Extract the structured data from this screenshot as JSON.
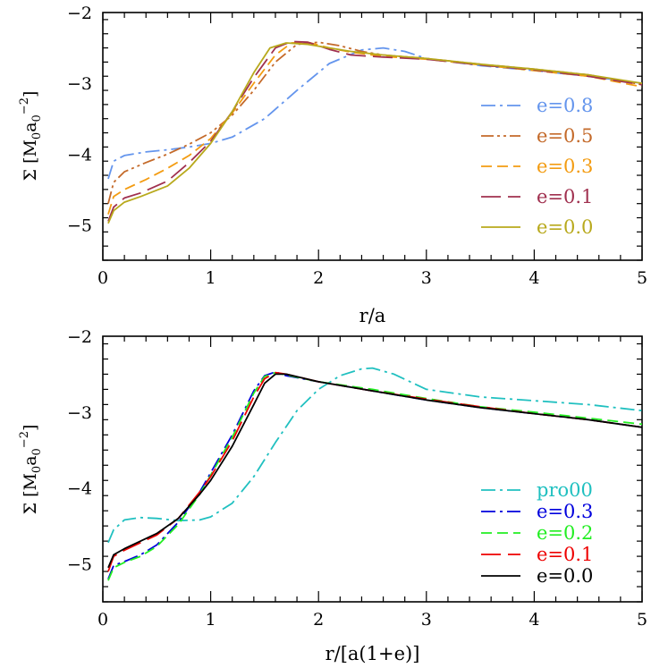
{
  "chart_data": [
    {
      "type": "line",
      "xlabel": "r/a",
      "ylabel_main": "Σ [M",
      "ylabel_sub1": "0",
      "ylabel_mid": "a",
      "ylabel_sub2": "0",
      "ylabel_sup": "−2",
      "ylabel_end": "]",
      "xlim": [
        0,
        5
      ],
      "ylim": [
        -5.5,
        -2
      ],
      "xticks": [
        "0",
        "1",
        "2",
        "3",
        "4",
        "5"
      ],
      "yticks": [
        "−5",
        "−4",
        "−3",
        "−2"
      ],
      "legend_position": "right",
      "series": [
        {
          "name": "e=0.8",
          "color": "#6495ed",
          "dash": "dashdot",
          "x": [
            0.05,
            0.1,
            0.2,
            0.4,
            0.6,
            0.8,
            1.0,
            1.2,
            1.5,
            1.8,
            2.1,
            2.4,
            2.6,
            2.8,
            3.0,
            3.5,
            4.0,
            4.5,
            5.0
          ],
          "y": [
            -4.35,
            -4.1,
            -4.02,
            -3.97,
            -3.94,
            -3.9,
            -3.85,
            -3.76,
            -3.5,
            -3.1,
            -2.72,
            -2.53,
            -2.5,
            -2.55,
            -2.65,
            -2.75,
            -2.82,
            -2.9,
            -3.0
          ]
        },
        {
          "name": "e=0.5",
          "color": "#c46a2a",
          "dash": "dashdotdot",
          "x": [
            0.05,
            0.1,
            0.2,
            0.4,
            0.6,
            0.8,
            1.0,
            1.2,
            1.4,
            1.6,
            1.8,
            2.0,
            2.2,
            2.4,
            2.6,
            3.0,
            3.5,
            4.0,
            4.5,
            5.0
          ],
          "y": [
            -4.7,
            -4.4,
            -4.25,
            -4.12,
            -4.0,
            -3.86,
            -3.7,
            -3.45,
            -3.1,
            -2.7,
            -2.45,
            -2.42,
            -2.47,
            -2.55,
            -2.6,
            -2.65,
            -2.73,
            -2.8,
            -2.88,
            -3.02
          ]
        },
        {
          "name": "e=0.3",
          "color": "#f39c12",
          "dash": "dashed",
          "x": [
            0.05,
            0.1,
            0.2,
            0.4,
            0.6,
            0.8,
            1.0,
            1.2,
            1.4,
            1.6,
            1.75,
            1.9,
            2.1,
            2.3,
            2.6,
            3.0,
            3.5,
            4.0,
            4.5,
            5.0
          ],
          "y": [
            -4.85,
            -4.6,
            -4.5,
            -4.36,
            -4.2,
            -4.02,
            -3.78,
            -3.42,
            -3.0,
            -2.6,
            -2.43,
            -2.42,
            -2.5,
            -2.56,
            -2.62,
            -2.66,
            -2.74,
            -2.82,
            -2.9,
            -3.05
          ]
        },
        {
          "name": "e=0.1",
          "color": "#a0304f",
          "dash": "longdash",
          "x": [
            0.05,
            0.1,
            0.2,
            0.35,
            0.6,
            0.8,
            1.0,
            1.2,
            1.4,
            1.6,
            1.75,
            1.9,
            2.1,
            2.3,
            2.6,
            3.0,
            3.5,
            4.0,
            4.5,
            5.0
          ],
          "y": [
            -4.95,
            -4.75,
            -4.62,
            -4.55,
            -4.38,
            -4.12,
            -3.82,
            -3.4,
            -2.92,
            -2.5,
            -2.41,
            -2.42,
            -2.52,
            -2.6,
            -2.63,
            -2.66,
            -2.74,
            -2.81,
            -2.9,
            -3.02
          ]
        },
        {
          "name": "e=0.0",
          "color": "#b8a91c",
          "dash": "solid",
          "x": [
            0.05,
            0.1,
            0.2,
            0.35,
            0.6,
            0.8,
            1.0,
            1.2,
            1.4,
            1.55,
            1.7,
            1.9,
            2.1,
            2.3,
            2.6,
            3.0,
            3.5,
            4.0,
            4.5,
            5.0
          ],
          "y": [
            -4.98,
            -4.8,
            -4.68,
            -4.6,
            -4.45,
            -4.2,
            -3.85,
            -3.4,
            -2.85,
            -2.5,
            -2.43,
            -2.45,
            -2.5,
            -2.55,
            -2.6,
            -2.65,
            -2.73,
            -2.8,
            -2.88,
            -3.0
          ]
        }
      ]
    },
    {
      "type": "line",
      "xlabel": "r/[a(1+e)]",
      "ylabel_main": "Σ [M",
      "ylabel_sub1": "0",
      "ylabel_mid": "a",
      "ylabel_sub2": "0",
      "ylabel_sup": "−2",
      "ylabel_end": "]",
      "xlim": [
        0,
        5
      ],
      "ylim": [
        -5.5,
        -2
      ],
      "xticks": [
        "0",
        "1",
        "2",
        "3",
        "4",
        "5"
      ],
      "yticks": [
        "−5",
        "−4",
        "−3",
        "−2"
      ],
      "legend_position": "bottom-right",
      "series": [
        {
          "name": "pro00",
          "color": "#20c0c0",
          "dash": "dashdot",
          "x": [
            0.05,
            0.1,
            0.2,
            0.35,
            0.5,
            0.7,
            0.9,
            1.0,
            1.2,
            1.4,
            1.6,
            1.8,
            2.0,
            2.2,
            2.4,
            2.5,
            2.7,
            3.0,
            3.5,
            4.0,
            4.5,
            5.0
          ],
          "y": [
            -4.72,
            -4.55,
            -4.42,
            -4.39,
            -4.4,
            -4.43,
            -4.42,
            -4.38,
            -4.2,
            -3.85,
            -3.4,
            -2.98,
            -2.7,
            -2.52,
            -2.43,
            -2.42,
            -2.5,
            -2.7,
            -2.8,
            -2.85,
            -2.9,
            -2.98
          ]
        },
        {
          "name": "e=0.3",
          "color": "#0000dd",
          "dash": "dashdot",
          "x": [
            0.05,
            0.1,
            0.2,
            0.35,
            0.5,
            0.7,
            0.9,
            1.0,
            1.2,
            1.4,
            1.5,
            1.6,
            1.7,
            2.0,
            2.5,
            3.0,
            3.5,
            4.0,
            4.5,
            5.0
          ],
          "y": [
            -5.2,
            -5.02,
            -4.97,
            -4.88,
            -4.75,
            -4.45,
            -4.05,
            -3.8,
            -3.3,
            -2.72,
            -2.52,
            -2.47,
            -2.52,
            -2.6,
            -2.72,
            -2.84,
            -2.94,
            -3.02,
            -3.1,
            -3.2
          ]
        },
        {
          "name": "e=0.2",
          "color": "#22ee22",
          "dash": "dashed",
          "x": [
            0.05,
            0.1,
            0.2,
            0.35,
            0.5,
            0.7,
            0.9,
            1.0,
            1.2,
            1.4,
            1.5,
            1.6,
            1.7,
            2.0,
            2.5,
            3.0,
            3.5,
            4.0,
            4.5,
            5.0
          ],
          "y": [
            -5.22,
            -5.05,
            -4.98,
            -4.9,
            -4.77,
            -4.48,
            -4.08,
            -3.83,
            -3.33,
            -2.75,
            -2.53,
            -2.48,
            -2.51,
            -2.6,
            -2.7,
            -2.82,
            -2.93,
            -3.0,
            -3.08,
            -3.16
          ]
        },
        {
          "name": "e=0.1",
          "color": "#ee0000",
          "dash": "longdash",
          "x": [
            0.05,
            0.1,
            0.2,
            0.35,
            0.5,
            0.7,
            0.9,
            1.0,
            1.2,
            1.4,
            1.5,
            1.6,
            1.7,
            2.0,
            2.5,
            3.0,
            3.5,
            4.0,
            4.5,
            5.0
          ],
          "y": [
            -5.1,
            -4.9,
            -4.82,
            -4.72,
            -4.62,
            -4.4,
            -4.05,
            -3.85,
            -3.38,
            -2.8,
            -2.56,
            -2.48,
            -2.5,
            -2.6,
            -2.72,
            -2.83,
            -2.93,
            -3.02,
            -3.1,
            -3.2
          ]
        },
        {
          "name": "e=0.0",
          "color": "#000000",
          "dash": "solid",
          "x": [
            0.05,
            0.1,
            0.2,
            0.35,
            0.5,
            0.7,
            0.9,
            1.0,
            1.2,
            1.4,
            1.5,
            1.6,
            1.7,
            2.0,
            2.5,
            3.0,
            3.5,
            4.0,
            4.5,
            5.0
          ],
          "y": [
            -5.05,
            -4.88,
            -4.8,
            -4.7,
            -4.6,
            -4.4,
            -4.08,
            -3.9,
            -3.45,
            -2.9,
            -2.62,
            -2.5,
            -2.5,
            -2.6,
            -2.72,
            -2.84,
            -2.94,
            -3.02,
            -3.1,
            -3.2
          ]
        }
      ]
    }
  ]
}
